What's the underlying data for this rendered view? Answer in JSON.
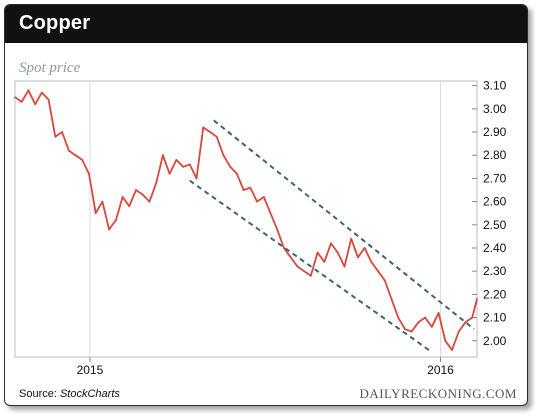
{
  "header": {
    "title": "Copper"
  },
  "subtitle": "Spot price",
  "footer": {
    "source_label": "Source: ",
    "source_provider": "StockCharts",
    "brand": "DAILYRECKONING.COM"
  },
  "colors": {
    "header_bg": "#111111",
    "line": "#d9473b",
    "channel": "#3d6378",
    "grid": "#dddddd",
    "subtitle": "#8a9aae"
  },
  "chart_data": {
    "type": "line",
    "title": "Copper",
    "subtitle": "Spot price",
    "xlabel": "",
    "ylabel": "",
    "x_ticks": [
      "2015",
      "2016"
    ],
    "y_ticks": [
      "3.10",
      "3.00",
      "2.90",
      "2.80",
      "2.70",
      "2.60",
      "2.50",
      "2.40",
      "2.30",
      "2.20",
      "2.10",
      "2.00"
    ],
    "ylim": [
      1.93,
      3.12
    ],
    "xlim": [
      "2014-10-15",
      "2016-02-08"
    ],
    "grid": false,
    "series": [
      {
        "x": [
          "2014-10-15",
          "2014-10-22",
          "2014-10-29",
          "2014-11-05",
          "2014-11-12",
          "2014-11-19",
          "2014-11-26",
          "2014-12-03",
          "2014-12-10",
          "2014-12-17",
          "2014-12-24",
          "2014-12-31",
          "2015-01-07",
          "2015-01-14",
          "2015-01-21",
          "2015-01-28",
          "2015-02-04",
          "2015-02-11",
          "2015-02-18",
          "2015-02-25",
          "2015-03-04",
          "2015-03-11",
          "2015-03-18",
          "2015-03-25",
          "2015-04-01",
          "2015-04-08",
          "2015-04-15",
          "2015-04-22",
          "2015-04-29",
          "2015-05-06",
          "2015-05-13",
          "2015-05-20",
          "2015-05-27",
          "2015-06-03",
          "2015-06-10",
          "2015-06-17",
          "2015-06-24",
          "2015-07-01",
          "2015-07-08",
          "2015-07-15",
          "2015-07-22",
          "2015-07-29",
          "2015-08-05",
          "2015-08-12",
          "2015-08-19",
          "2015-08-26",
          "2015-09-02",
          "2015-09-09",
          "2015-09-16",
          "2015-09-23",
          "2015-09-30",
          "2015-10-07",
          "2015-10-14",
          "2015-10-21",
          "2015-10-28",
          "2015-11-04",
          "2015-11-11",
          "2015-11-18",
          "2015-11-25",
          "2015-12-02",
          "2015-12-09",
          "2015-12-16",
          "2015-12-23",
          "2015-12-30",
          "2016-01-06",
          "2016-01-13",
          "2016-01-20",
          "2016-01-27",
          "2016-02-03",
          "2016-02-08"
        ],
        "y": [
          3.05,
          3.03,
          3.08,
          3.02,
          3.07,
          3.04,
          2.88,
          2.9,
          2.82,
          2.8,
          2.78,
          2.72,
          2.55,
          2.6,
          2.48,
          2.52,
          2.62,
          2.58,
          2.65,
          2.63,
          2.6,
          2.68,
          2.8,
          2.72,
          2.78,
          2.75,
          2.76,
          2.7,
          2.92,
          2.9,
          2.88,
          2.8,
          2.75,
          2.72,
          2.65,
          2.66,
          2.6,
          2.62,
          2.55,
          2.48,
          2.4,
          2.36,
          2.32,
          2.3,
          2.28,
          2.38,
          2.34,
          2.42,
          2.38,
          2.32,
          2.44,
          2.36,
          2.4,
          2.34,
          2.3,
          2.26,
          2.18,
          2.1,
          2.05,
          2.04,
          2.08,
          2.1,
          2.06,
          2.12,
          2.0,
          1.96,
          2.04,
          2.08,
          2.1,
          2.18
        ]
      }
    ],
    "annotations": [
      "upper channel line",
      "lower channel line"
    ]
  }
}
